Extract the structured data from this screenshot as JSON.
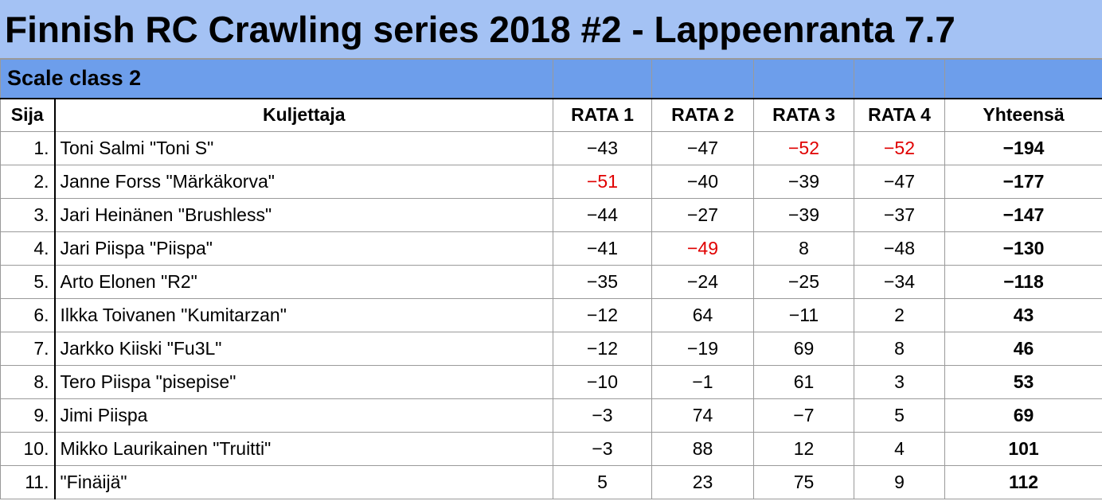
{
  "title": "Finnish RC Crawling series 2018 #2 - Lappeenranta 7.7",
  "class_label": "Scale class 2",
  "columns": {
    "position": "Sija",
    "driver": "Kuljettaja",
    "rata1": "RATA 1",
    "rata2": "RATA 2",
    "rata3": "RATA 3",
    "rata4": "RATA 4",
    "total": "Yhteensä"
  },
  "highlight_color": "#e00000",
  "rows": [
    {
      "pos": "1.",
      "driver": "Toni Salmi \"Toni S\"",
      "r1": "−43",
      "r2": "−47",
      "r3": "−52",
      "r4": "−52",
      "total": "−194",
      "red": [
        3,
        4
      ]
    },
    {
      "pos": "2.",
      "driver": "Janne Forss \"Märkäkorva\"",
      "r1": "−51",
      "r2": "−40",
      "r3": "−39",
      "r4": "−47",
      "total": "−177",
      "red": [
        1
      ]
    },
    {
      "pos": "3.",
      "driver": "Jari Heinänen \"Brushless\"",
      "r1": "−44",
      "r2": "−27",
      "r3": "−39",
      "r4": "−37",
      "total": "−147",
      "red": []
    },
    {
      "pos": "4.",
      "driver": "Jari Piispa \"Piispa\"",
      "r1": "−41",
      "r2": "−49",
      "r3": "8",
      "r4": "−48",
      "total": "−130",
      "red": [
        2
      ]
    },
    {
      "pos": "5.",
      "driver": "Arto Elonen \"R2\"",
      "r1": "−35",
      "r2": "−24",
      "r3": "−25",
      "r4": "−34",
      "total": "−118",
      "red": []
    },
    {
      "pos": "6.",
      "driver": "Ilkka Toivanen \"Kumitarzan\"",
      "r1": "−12",
      "r2": "64",
      "r3": "−11",
      "r4": "2",
      "total": "43",
      "red": []
    },
    {
      "pos": "7.",
      "driver": "Jarkko Kiiski \"Fu3L\"",
      "r1": "−12",
      "r2": "−19",
      "r3": "69",
      "r4": "8",
      "total": "46",
      "red": []
    },
    {
      "pos": "8.",
      "driver": "Tero Piispa \"pisepise\"",
      "r1": "−10",
      "r2": "−1",
      "r3": "61",
      "r4": "3",
      "total": "53",
      "red": []
    },
    {
      "pos": "9.",
      "driver": "Jimi Piispa",
      "r1": "−3",
      "r2": "74",
      "r3": "−7",
      "r4": "5",
      "total": "69",
      "red": []
    },
    {
      "pos": "10.",
      "driver": "Mikko Laurikainen \"Truitti\"",
      "r1": "−3",
      "r2": "88",
      "r3": "12",
      "r4": "4",
      "total": "101",
      "red": []
    },
    {
      "pos": "11.",
      "driver": "\"Finäijä\"",
      "r1": "5",
      "r2": "23",
      "r3": "75",
      "r4": "9",
      "total": "112",
      "red": []
    }
  ]
}
